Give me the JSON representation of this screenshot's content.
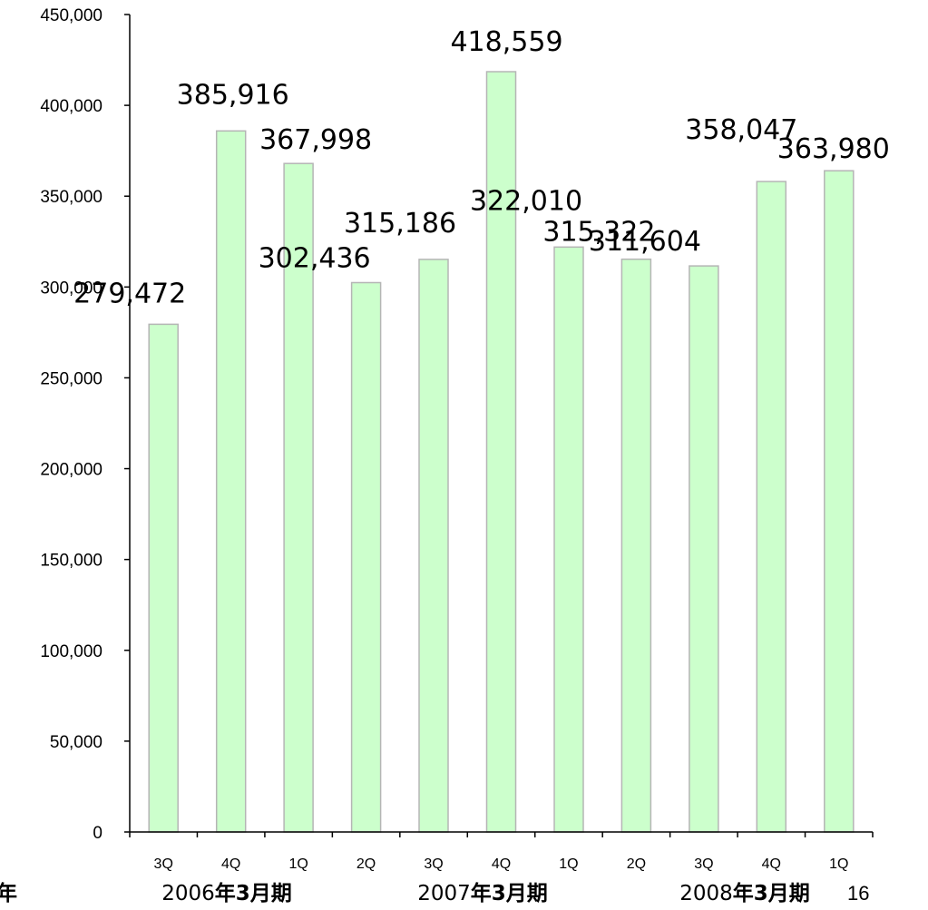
{
  "page": {
    "left_fragment": "年",
    "page_number": "16"
  },
  "colors": {
    "bar_fill": "#ccffcc",
    "bar_stroke": "#b5b5b5",
    "axis": "#000000"
  },
  "chart_data": {
    "type": "bar",
    "title": "",
    "xlabel": "",
    "ylabel": "",
    "ylim": [
      0,
      450000
    ],
    "ytick_step": 50000,
    "yticks": [
      "0",
      "50,000",
      "100,000",
      "150,000",
      "200,000",
      "250,000",
      "300,000",
      "350,000",
      "400,000",
      "450,000"
    ],
    "grid": false,
    "legend": "none",
    "categories": [
      "3Q",
      "4Q",
      "1Q",
      "2Q",
      "3Q",
      "4Q",
      "1Q",
      "2Q",
      "3Q",
      "4Q",
      "1Q"
    ],
    "values": [
      279472,
      385916,
      367998,
      302436,
      315186,
      418559,
      322010,
      315322,
      311604,
      358047,
      363980
    ],
    "value_labels": [
      "279,472",
      "385,916",
      "367,998",
      "302,436",
      "315,186",
      "418,559",
      "322,010",
      "315,322",
      "311,604",
      "358,047",
      "363,980"
    ],
    "periods": [
      {
        "year": "2006",
        "suffix": "年3月期",
        "first_index": 0,
        "last_index": 1
      },
      {
        "year": "2007",
        "suffix": "年3月期",
        "first_index": 2,
        "last_index": 5
      },
      {
        "year": "2008",
        "suffix": "年3月期",
        "first_index": 6,
        "last_index": 9
      }
    ]
  }
}
